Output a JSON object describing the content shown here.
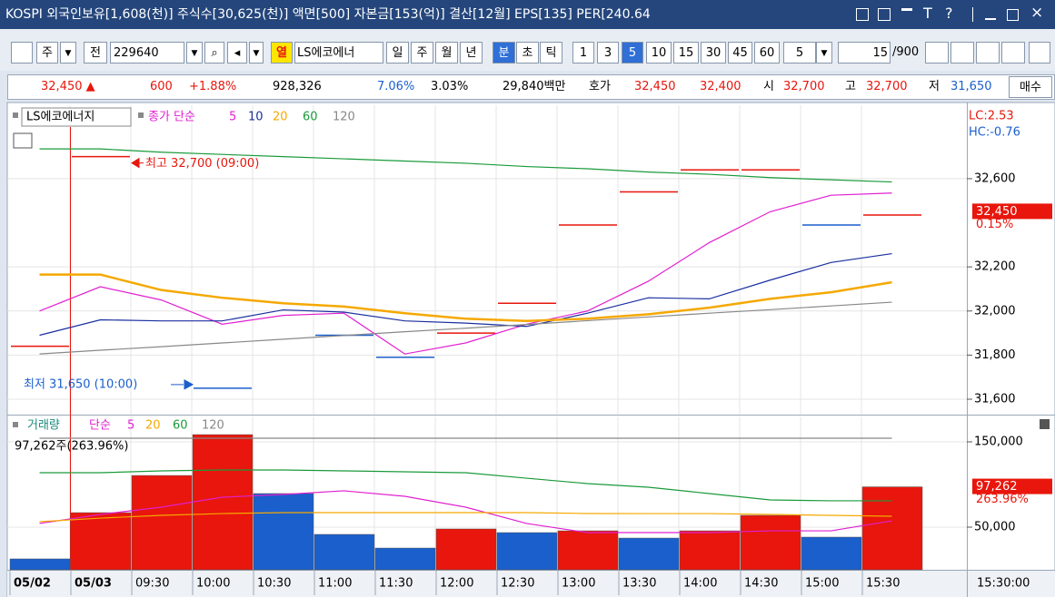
{
  "title_bar": {
    "text": "KOSPI 외국인보유[1,608(천)] 주식수[30,625(천)] 액면[500] 자본금[153(억)] 결산[12월] EPS[135] PER[240.64",
    "buttons": [
      "T",
      "?"
    ]
  },
  "toolbar": {
    "code_type": "주",
    "market": "전",
    "code": "229640",
    "tag": "열",
    "name": "LS에코에너",
    "periods": [
      "일",
      "주",
      "월",
      "년",
      "분",
      "초",
      "틱"
    ],
    "intervals": [
      "1",
      "3",
      "5",
      "10",
      "15",
      "30",
      "45",
      "60"
    ],
    "multiplier": "5",
    "count": "15",
    "max": "/900"
  },
  "quote": {
    "price": "32,450 ▲",
    "change": "600",
    "change_rate": "+1.88%",
    "volume": "928,326",
    "turnover": "7.06%",
    "foreign": "3.03%",
    "amount": "29,840백만",
    "quote_label": "호가",
    "ask": "32,450",
    "bid": "32,400",
    "open_label": "시",
    "open": "32,700",
    "high_label": "고",
    "high": "32,700",
    "low_label": "저",
    "low": "31,650",
    "buy": "매수"
  },
  "chart_data": [
    {
      "type": "candlestick",
      "title": "LS에코에너지",
      "legend_title": "종가 단순",
      "candles": {
        "values": [
          31840,
          32700,
          null,
          31650,
          null,
          31890,
          31790,
          31900,
          32035,
          32390,
          32540,
          32640,
          32640,
          32390,
          32435
        ],
        "colors": [
          "#e8160c",
          "#e8160c",
          null,
          "#1a5fcc",
          null,
          "#1a5fcc",
          "#1a5fcc",
          "#e8160c",
          "#e8160c",
          "#e8160c",
          "#e8160c",
          "#e8160c",
          "#e8160c",
          "#1a5fcc",
          "#e8160c"
        ]
      },
      "series": [
        {
          "name": "5",
          "color": "#e020d0",
          "values": [
            32000,
            32110,
            32050,
            31940,
            31980,
            31990,
            31805,
            31855,
            31940,
            32000,
            32135,
            32310,
            32450,
            32525,
            32535
          ]
        },
        {
          "name": "10",
          "color": "#1a2fa0",
          "values": [
            31890,
            31960,
            31955,
            31955,
            32005,
            31995,
            31955,
            31945,
            31930,
            31990,
            32060,
            32055,
            32140,
            32220,
            32260
          ]
        },
        {
          "name": "20",
          "color": "#f5a800",
          "values": [
            32165,
            32165,
            32095,
            32060,
            32035,
            32020,
            31990,
            31965,
            31955,
            31965,
            31985,
            32015,
            32055,
            32085,
            32130
          ]
        },
        {
          "name": "60",
          "color": "#1a9a3a",
          "values": [
            32735,
            32735,
            32720,
            32710,
            32700,
            32690,
            32680,
            32670,
            32655,
            32645,
            32630,
            32620,
            32605,
            32595,
            32585
          ]
        },
        {
          "name": "120",
          "color": "#888888",
          "values": [
            31805,
            31822,
            31838,
            31855,
            31872,
            31889,
            31906,
            31922,
            31939,
            31956,
            31973,
            31990,
            32006,
            32023,
            32040
          ]
        }
      ],
      "ylim": [
        31530,
        32933
      ],
      "yticks": [
        {
          "value": 31600,
          "label": "31,600"
        },
        {
          "value": 31800,
          "label": "31,800"
        },
        {
          "value": 32000,
          "label": "32,000"
        },
        {
          "value": 32200,
          "label": "32,200"
        },
        {
          "value": 32600,
          "label": "32,600"
        }
      ],
      "grid": true,
      "last_label": {
        "value": 32450,
        "label": "32,450"
      },
      "change_label": "0.15%",
      "lc": "LC:2.53",
      "hc": "HC:-0.76",
      "annotations": [
        {
          "text": "최고 32,700 (09:00)",
          "value": 32700
        },
        {
          "text": "최저 31,650 (10:00)",
          "value": 31650
        }
      ]
    },
    {
      "type": "bar",
      "title": "거래량",
      "legend_title": "단순",
      "subtitle": "97,262주(263.96%)",
      "categories": [
        "05/02",
        "05/03",
        "09:30",
        "10:00",
        "10:30",
        "11:00",
        "11:30",
        "12:00",
        "12:30",
        "13:00",
        "13:30",
        "14:00",
        "14:30",
        "15:00",
        "15:30"
      ],
      "values": [
        12800,
        67000,
        110600,
        158500,
        89400,
        41500,
        25500,
        47900,
        43600,
        45700,
        37200,
        45700,
        63800,
        38300,
        97262
      ],
      "colors": [
        "#1a5fcc",
        "#e8160c",
        "#e8160c",
        "#e8160c",
        "#1a5fcc",
        "#1a5fcc",
        "#1a5fcc",
        "#e8160c",
        "#1a5fcc",
        "#e8160c",
        "#1a5fcc",
        "#e8160c",
        "#e8160c",
        "#1a5fcc",
        "#e8160c"
      ],
      "series": [
        {
          "name": "5",
          "color": "#e020d0",
          "values": [
            54300,
            64900,
            73400,
            85100,
            88300,
            92600,
            86200,
            73400,
            54300,
            43600,
            43600,
            43600,
            45700,
            45700,
            57400
          ]
        },
        {
          "name": "20",
          "color": "#f5a800",
          "values": [
            56400,
            60600,
            63800,
            65900,
            67000,
            67000,
            67000,
            67000,
            67000,
            66000,
            65900,
            65900,
            64900,
            63800,
            62800
          ]
        },
        {
          "name": "60",
          "color": "#1a9a3a",
          "values": [
            113800,
            113800,
            116000,
            117000,
            117000,
            116000,
            114900,
            113800,
            107400,
            101100,
            96800,
            89400,
            81900,
            80900,
            80900
          ]
        },
        {
          "name": "120",
          "color": "#888888",
          "values": [
            154300,
            154300,
            154300,
            154300,
            154300,
            154300,
            154300,
            154300,
            154300,
            154300,
            154300,
            154300,
            154300,
            154300,
            154300
          ]
        }
      ],
      "ylim": [
        0,
        179800
      ],
      "yticks": [
        {
          "value": 50000,
          "label": "50,000"
        },
        {
          "value": 150000,
          "label": "150,000"
        }
      ],
      "grid": true,
      "last_label": {
        "value": 97262,
        "label": "97,262"
      },
      "change_label": "263.96%",
      "x_cursor_label": "15:30:00"
    }
  ]
}
